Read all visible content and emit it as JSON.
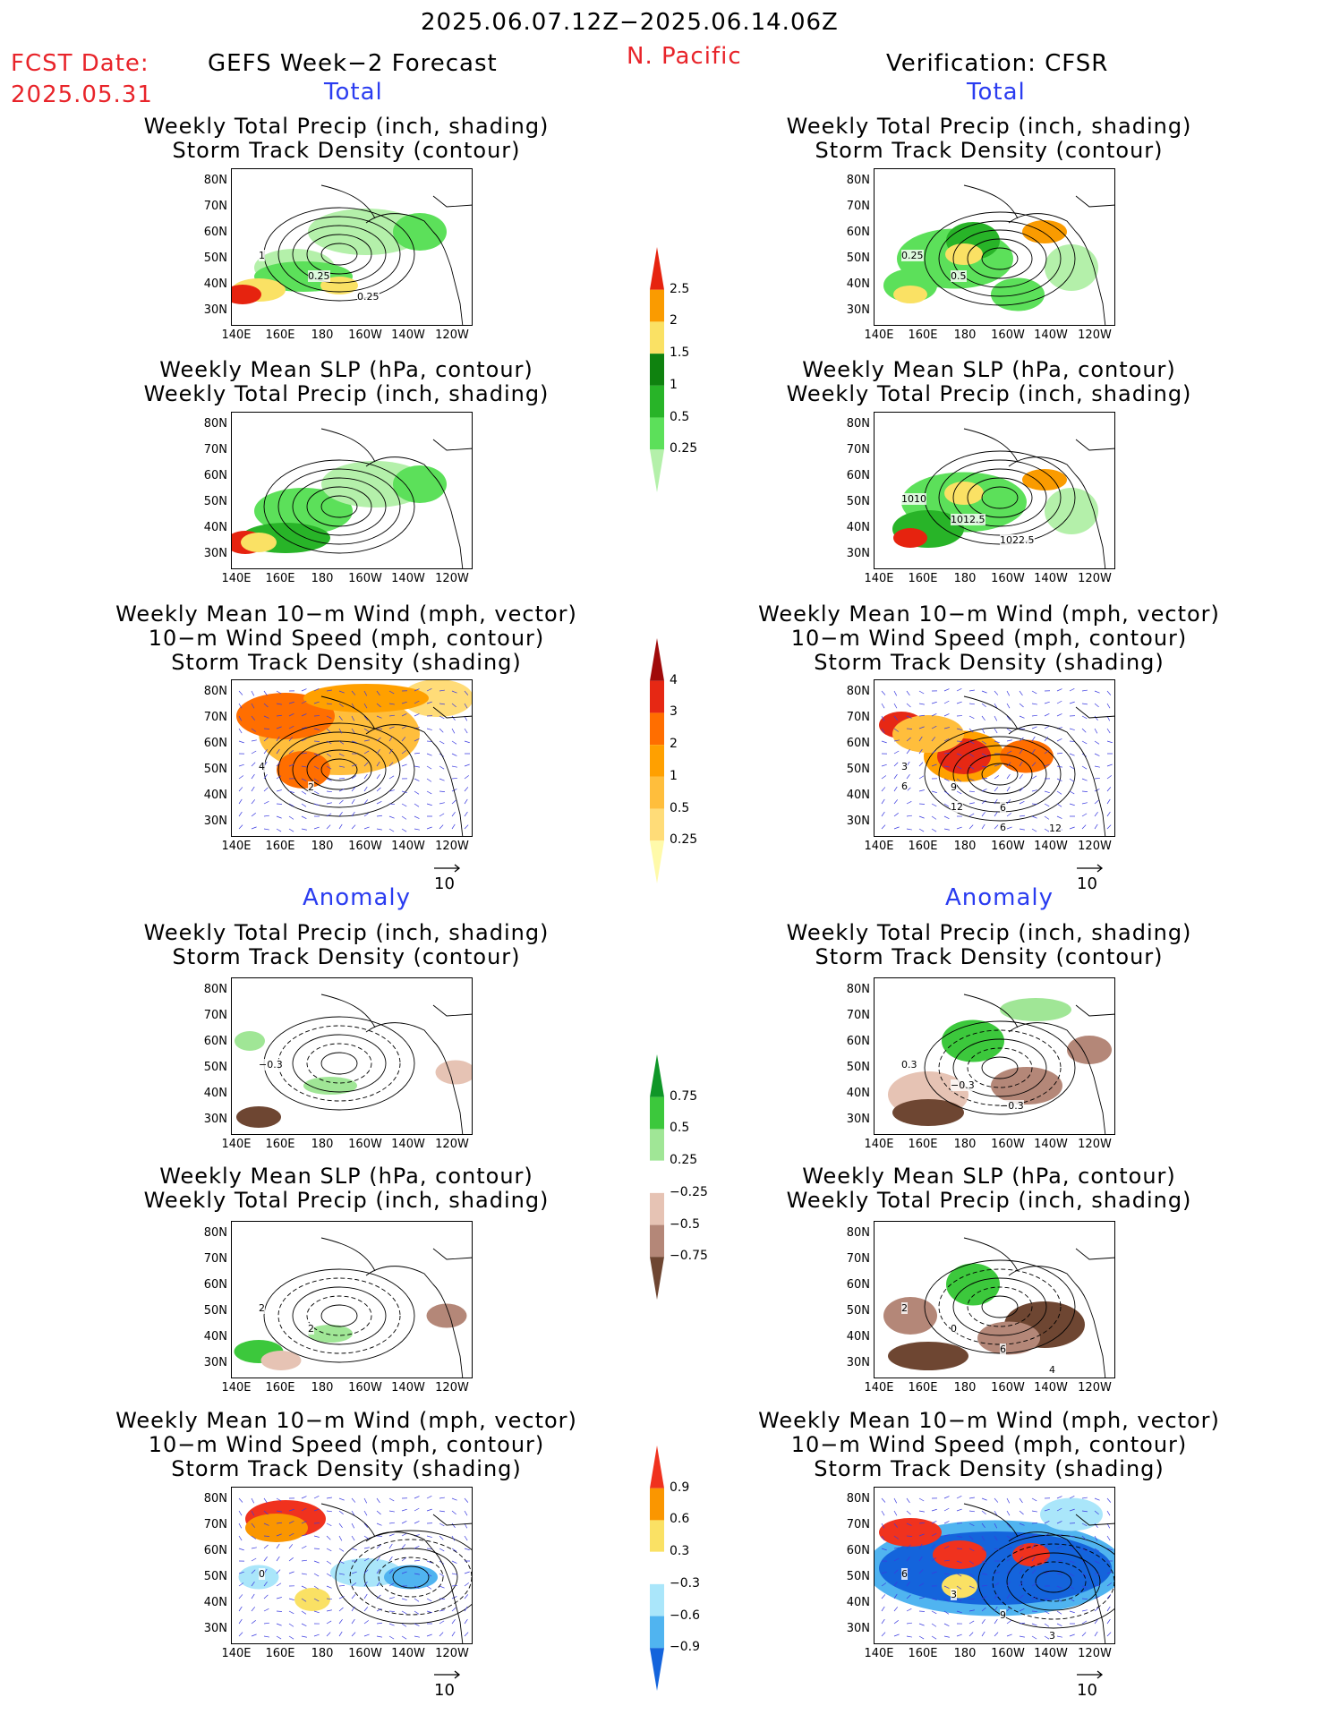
{
  "header": {
    "period": "2025.06.07.12Z−2025.06.14.06Z",
    "region": "N. Pacific",
    "fcst_label": "FCST Date:",
    "fcst_date": "2025.05.31",
    "left_title": "GEFS Week−2 Forecast",
    "right_title": "Verification: CFSR",
    "total_label": "Total",
    "anomaly_label": "Anomaly"
  },
  "panel_titles": {
    "precip_storm": [
      "Weekly Total Precip (inch, shading)",
      "Storm Track Density (contour)"
    ],
    "slp_precip": [
      "Weekly Mean SLP (hPa, contour)",
      "Weekly Total Precip (inch, shading)"
    ],
    "wind_storm": [
      "Weekly Mean 10−m Wind (mph, vector)",
      "10−m Wind Speed (mph, contour)",
      "Storm Track Density (shading)"
    ]
  },
  "axes": {
    "lat_ticks": [
      "80N",
      "70N",
      "60N",
      "50N",
      "40N",
      "30N"
    ],
    "lon_ticks": [
      "140E",
      "160E",
      "180",
      "160W",
      "140W",
      "120W"
    ]
  },
  "vector_reference": "10",
  "colorbars": {
    "precip_total": {
      "labels": [
        "0.25",
        "0.5",
        "1",
        "1.5",
        "2",
        "2.5"
      ],
      "colors": [
        "#b4f0aa",
        "#5ce05a",
        "#28b428",
        "#0f820f",
        "#fae164",
        "#fa9b00",
        "#e6230f"
      ]
    },
    "storm_total": {
      "labels": [
        "0.25",
        "0.5",
        "1",
        "2",
        "3",
        "4"
      ],
      "colors": [
        "#fffaaa",
        "#ffdc78",
        "#ffbe3c",
        "#ffa000",
        "#ff6e00",
        "#e62814",
        "#a00a0a"
      ]
    },
    "precip_anom": {
      "labels": [
        "0.75",
        "0.5",
        "0.25",
        "−0.25",
        "−0.5",
        "−0.75"
      ],
      "colors": [
        "#0f9628",
        "#3cc83c",
        "#a0e696",
        "#ffffff",
        "#e6c3b4",
        "#b48778",
        "#6e4632"
      ]
    },
    "storm_anom": {
      "labels": [
        "0.9",
        "0.6",
        "0.3",
        "−0.3",
        "−0.6",
        "−0.9"
      ],
      "colors": [
        "#f0321e",
        "#fa9600",
        "#fae164",
        "#ffffff",
        "#aae6fa",
        "#50b4f0",
        "#1464dc"
      ]
    }
  },
  "contour_labels": {
    "gefs_total_precip": [
      "1",
      "0.25",
      "0.25"
    ],
    "cfsr_total_precip": [
      "0.25",
      "0.5"
    ],
    "cfsr_total_slp": [
      "1010",
      "1012.5",
      "1022.5"
    ],
    "gefs_total_wind": [
      "4",
      "2"
    ],
    "cfsr_total_wind": [
      "3",
      "9",
      "6",
      "12",
      "6",
      "12",
      "6"
    ],
    "gefs_anom_precip": [
      "−0.3"
    ],
    "cfsr_anom_precip": [
      "0.3",
      "−0.3",
      "−0.3"
    ],
    "gefs_anom_slp": [
      "2",
      "2"
    ],
    "cfsr_anom_slp": [
      "2",
      "0",
      "6",
      "4"
    ],
    "gefs_anom_wind": [
      "0"
    ],
    "cfsr_anom_wind": [
      "6",
      "3",
      "9",
      "3"
    ]
  },
  "chart_data": {
    "type": "heatmap",
    "title": "2025.06.07.12Z−2025.06.14.06Z N. Pacific",
    "panels": [
      "GEFS Total precip/storm",
      "CFSR Total precip/storm",
      "GEFS Total SLP/precip",
      "CFSR Total SLP/precip",
      "GEFS Total wind/storm",
      "CFSR Total wind/storm",
      "GEFS Anomaly precip/storm",
      "CFSR Anomaly precip/storm",
      "GEFS Anomaly SLP/precip",
      "CFSR Anomaly SLP/precip",
      "GEFS Anomaly wind/storm",
      "CFSR Anomaly wind/storm"
    ],
    "lat_range": [
      25,
      85
    ],
    "lon_range": [
      140,
      245
    ]
  }
}
